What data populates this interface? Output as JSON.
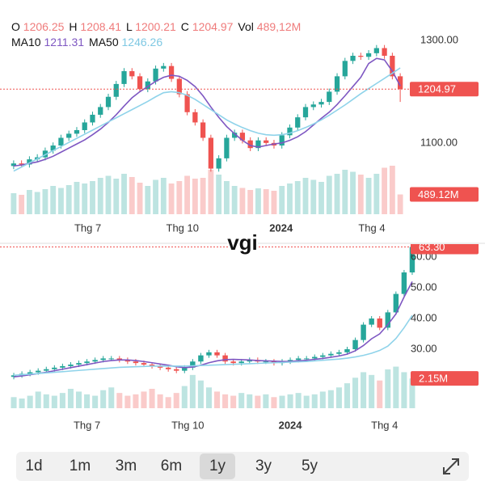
{
  "header": {
    "items": [
      {
        "label": "O",
        "value": 1206.25
      },
      {
        "label": "H",
        "value": 1208.41
      },
      {
        "label": "L",
        "value": 1200.21
      },
      {
        "label": "C",
        "value": 1204.97
      },
      {
        "label": "Vol",
        "value": "489,12M"
      }
    ],
    "ma": [
      {
        "label": "MA10",
        "value": 1211.31,
        "color": "#7e57c2"
      },
      {
        "label": "MA50",
        "value": 1246.26,
        "color": "#7ec8e3"
      }
    ]
  },
  "chart_data": [
    {
      "type": "candlestick",
      "up_color": "#26a69a",
      "down_color": "#ef5350",
      "open": [
        1055,
        1060,
        1058,
        1068,
        1072,
        1085,
        1095,
        1110,
        1118,
        1125,
        1140,
        1155,
        1170,
        1190,
        1215,
        1240,
        1230,
        1205,
        1220,
        1245,
        1250,
        1225,
        1195,
        1160,
        1140,
        1110,
        1050,
        1070,
        1110,
        1120,
        1105,
        1090,
        1105,
        1100,
        1095,
        1115,
        1130,
        1150,
        1170,
        1175,
        1180,
        1200,
        1230,
        1260,
        1270,
        1268,
        1275,
        1285,
        1270,
        1230
      ],
      "high": [
        1066,
        1066,
        1074,
        1078,
        1091,
        1101,
        1116,
        1124,
        1131,
        1146,
        1161,
        1176,
        1196,
        1221,
        1246,
        1246,
        1236,
        1226,
        1251,
        1256,
        1256,
        1231,
        1201,
        1166,
        1146,
        1116,
        1076,
        1116,
        1126,
        1126,
        1111,
        1111,
        1111,
        1106,
        1121,
        1136,
        1156,
        1176,
        1181,
        1186,
        1206,
        1236,
        1266,
        1276,
        1276,
        1281,
        1291,
        1291,
        1276,
        1236
      ],
      "low": [
        1049,
        1052,
        1052,
        1062,
        1066,
        1079,
        1089,
        1104,
        1112,
        1119,
        1134,
        1149,
        1164,
        1184,
        1209,
        1224,
        1199,
        1199,
        1214,
        1239,
        1219,
        1189,
        1154,
        1134,
        1104,
        1044,
        1044,
        1064,
        1104,
        1099,
        1084,
        1084,
        1094,
        1089,
        1089,
        1109,
        1124,
        1144,
        1164,
        1169,
        1174,
        1194,
        1224,
        1254,
        1262,
        1262,
        1269,
        1264,
        1224,
        1180
      ],
      "close": [
        1060,
        1058,
        1068,
        1072,
        1085,
        1095,
        1110,
        1118,
        1125,
        1140,
        1155,
        1170,
        1190,
        1215,
        1240,
        1230,
        1205,
        1220,
        1245,
        1250,
        1225,
        1195,
        1160,
        1140,
        1110,
        1050,
        1070,
        1110,
        1120,
        1105,
        1090,
        1105,
        1100,
        1095,
        1115,
        1130,
        1150,
        1170,
        1175,
        1180,
        1200,
        1230,
        1260,
        1270,
        1268,
        1275,
        1285,
        1270,
        1230,
        1204.97
      ],
      "series": [
        {
          "color": "#7e57c2",
          "values": [
            1055,
            1057,
            1060,
            1063,
            1068,
            1074,
            1082,
            1090,
            1098,
            1106,
            1116,
            1127,
            1140,
            1155,
            1172,
            1188,
            1200,
            1210,
            1220,
            1228,
            1232,
            1230,
            1222,
            1210,
            1192,
            1170,
            1150,
            1132,
            1118,
            1105,
            1095,
            1092,
            1095,
            1098,
            1100,
            1105,
            1112,
            1122,
            1135,
            1148,
            1160,
            1175,
            1192,
            1210,
            1228,
            1255,
            1265,
            1262,
            1240,
            1211.31
          ]
        },
        {
          "color": "#8fd3ea",
          "values": [
            1045,
            1053,
            1061,
            1069,
            1077,
            1085,
            1093,
            1101,
            1109,
            1117,
            1125,
            1133,
            1141,
            1149,
            1157,
            1165,
            1173,
            1181,
            1190,
            1198,
            1200,
            1198,
            1193,
            1185,
            1175,
            1165,
            1155,
            1145,
            1137,
            1130,
            1124,
            1119,
            1116,
            1115,
            1116,
            1119,
            1124,
            1130,
            1137,
            1145,
            1154,
            1164,
            1174,
            1185,
            1196,
            1206,
            1216,
            1226,
            1236,
            1246.26
          ]
        }
      ],
      "volume": [
        520,
        480,
        600,
        550,
        620,
        700,
        650,
        720,
        800,
        760,
        820,
        900,
        950,
        880,
        1000,
        920,
        780,
        700,
        850,
        900,
        760,
        820,
        950,
        880,
        900,
        1100,
        980,
        820,
        700,
        650,
        600,
        640,
        620,
        580,
        700,
        760,
        820,
        900,
        850,
        800,
        950,
        1000,
        1100,
        1050,
        980,
        900,
        1000,
        1150,
        1200,
        489.12
      ],
      "vlim": [
        0,
        1400
      ],
      "ylim": [
        961,
        1331.5
      ],
      "yticks": [
        {
          "value": 1100,
          "label": "1100.00"
        },
        {
          "value": 1300,
          "label": "1300.00"
        }
      ],
      "xticks": [
        {
          "value": 9.4,
          "label": "Thg 7"
        },
        {
          "value": 21.4,
          "label": "Thg 10"
        },
        {
          "value": 33.9,
          "label": "2024",
          "bold": true
        },
        {
          "value": 45.4,
          "label": "Thg 4"
        }
      ],
      "price_line": 1204.97,
      "volume_line": {
        "value": 489.12,
        "label": "489.12M"
      }
    },
    {
      "type": "candlestick",
      "up_color": "#26a69a",
      "down_color": "#ef5350",
      "open": [
        21,
        21.5,
        22,
        22.5,
        23,
        23.5,
        24,
        24.5,
        25,
        25.5,
        26,
        26.5,
        27,
        27,
        26.5,
        26,
        25.5,
        25,
        24.5,
        24,
        23.5,
        23,
        24,
        26,
        28,
        29,
        28,
        26,
        25.5,
        26,
        26.5,
        26,
        26,
        25.5,
        26,
        26.5,
        27,
        27,
        27.5,
        28,
        28.5,
        29,
        30,
        33,
        38,
        40,
        37,
        42,
        48,
        55
      ],
      "high": [
        22.3,
        22.8,
        23.3,
        23.8,
        24.3,
        24.8,
        25.3,
        25.8,
        26.3,
        26.8,
        27.3,
        27.8,
        27.8,
        27.8,
        27.3,
        26.8,
        26.3,
        25.8,
        25.3,
        24.8,
        24.3,
        24.8,
        26.8,
        28.8,
        29.8,
        29.8,
        28.8,
        26.8,
        26.8,
        27.3,
        27.3,
        26.8,
        26.8,
        26.8,
        27.3,
        27.8,
        27.8,
        28.3,
        28.8,
        29.3,
        29.8,
        30.8,
        33.8,
        38.8,
        40.8,
        40.8,
        42.8,
        48.8,
        55.8,
        65
      ],
      "low": [
        20.2,
        20.7,
        21.2,
        21.7,
        22.2,
        22.7,
        23.2,
        23.7,
        24.2,
        24.7,
        25.2,
        25.7,
        26.2,
        25.7,
        25.2,
        24.7,
        24.2,
        23.7,
        23.2,
        22.7,
        22.2,
        22.2,
        23.2,
        25.2,
        27.2,
        27.2,
        25.2,
        24.7,
        24.7,
        25.2,
        25.2,
        25.2,
        24.7,
        24.7,
        25.2,
        25.7,
        26.2,
        26.2,
        26.7,
        27.2,
        27.7,
        28.2,
        29.2,
        32.2,
        37.2,
        36.2,
        36.2,
        41.2,
        47.2,
        54.2
      ],
      "close": [
        21.5,
        22,
        22.5,
        23,
        23.5,
        24,
        24.5,
        25,
        25.5,
        26,
        26.5,
        27,
        27,
        26.5,
        26,
        25.5,
        25,
        24.5,
        24,
        23.5,
        23,
        24,
        26,
        28,
        29,
        28,
        26,
        25.5,
        26,
        26.5,
        26,
        26,
        25.5,
        26,
        26.5,
        27,
        27,
        27.5,
        28,
        28.5,
        29,
        30,
        33,
        38,
        40,
        37,
        42,
        48,
        55,
        63.3
      ],
      "series": [
        {
          "color": "#7e57c2",
          "values": [
            21,
            21.3,
            21.7,
            22.1,
            22.5,
            23,
            23.5,
            24,
            24.5,
            25,
            25.5,
            26,
            26.3,
            26.5,
            26.5,
            26.3,
            26,
            25.6,
            25.2,
            24.8,
            24.3,
            24,
            24.2,
            24.8,
            25.6,
            26.2,
            26.6,
            26.7,
            26.6,
            26.5,
            26.3,
            26.2,
            26.1,
            26,
            26,
            26.2,
            26.4,
            26.7,
            27,
            27.4,
            27.8,
            28.4,
            29.5,
            31.2,
            33.4,
            35,
            38,
            41.5,
            47,
            52
          ]
        },
        {
          "color": "#8fd3ea",
          "values": [
            21.5,
            21.7,
            21.9,
            22.1,
            22.3,
            22.5,
            22.7,
            22.9,
            23.1,
            23.3,
            23.5,
            23.7,
            23.9,
            24.1,
            24.2,
            24.3,
            24.4,
            24.5,
            24.5,
            24.5,
            24.5,
            24.5,
            24.6,
            24.7,
            24.8,
            24.9,
            25,
            25.1,
            25.2,
            25.3,
            25.4,
            25.5,
            25.6,
            25.7,
            25.8,
            25.9,
            26,
            26.2,
            26.4,
            26.6,
            26.8,
            27.1,
            27.5,
            28,
            28.7,
            29.6,
            31,
            33.5,
            37,
            41
          ]
        }
      ],
      "volume": [
        0.8,
        0.7,
        0.9,
        1.2,
        1.0,
        0.9,
        1.1,
        1.4,
        1.2,
        1.0,
        0.9,
        1.3,
        1.5,
        1.1,
        0.9,
        1.0,
        1.2,
        1.4,
        1.0,
        0.8,
        1.1,
        1.6,
        2.4,
        2.0,
        1.5,
        1.2,
        1.0,
        0.9,
        1.1,
        1.0,
        0.9,
        1.0,
        0.8,
        0.9,
        1.0,
        1.1,
        0.9,
        1.0,
        1.2,
        1.3,
        1.5,
        1.8,
        2.2,
        2.6,
        2.4,
        2.0,
        2.8,
        3.0,
        2.6,
        2.15
      ],
      "vlim": [
        0,
        3.5
      ],
      "ylim": [
        10.8,
        64.74
      ],
      "yticks": [
        {
          "value": 30,
          "label": "30.00"
        },
        {
          "value": 40,
          "label": "40.00"
        },
        {
          "value": 50,
          "label": "50.00"
        },
        {
          "value": 60,
          "label": "60.00"
        }
      ],
      "xticks": [
        {
          "value": 9,
          "label": "Thg 7"
        },
        {
          "value": 21.4,
          "label": "Thg 10"
        },
        {
          "value": 34,
          "label": "2024",
          "bold": true
        },
        {
          "value": 45.6,
          "label": "Thg 4"
        }
      ],
      "price_line": {
        "value": 63.3,
        "label": "63.30"
      },
      "volume_line": {
        "value": 2.15,
        "label": "2.15M"
      }
    }
  ],
  "watermark": "vgi",
  "range_buttons": [
    "1d",
    "1m",
    "3m",
    "6m",
    "1y",
    "3y",
    "5y"
  ],
  "selected_index": 4
}
